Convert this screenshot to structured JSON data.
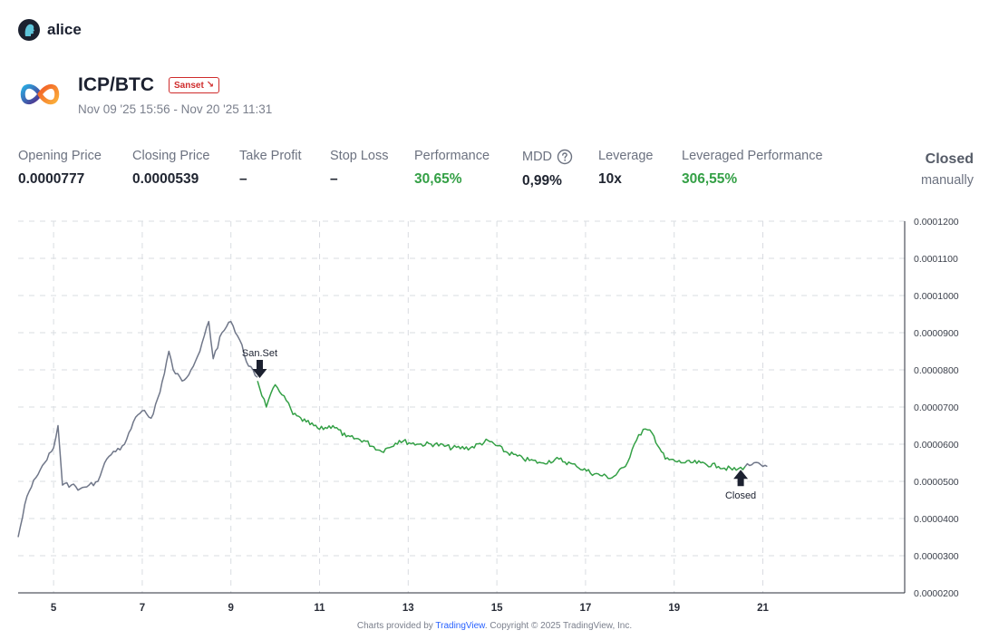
{
  "brand": {
    "name": "alice",
    "logo_icon": "alice-head-icon"
  },
  "pair": {
    "title": "ICP/BTC",
    "icon": "internet-computer-infinity-icon",
    "badge": {
      "label": "Sanset",
      "arrow": "↘",
      "color": "#cf2c2c"
    },
    "dates": "Nov 09 '25 15:56 - Nov 20 '25 11:31"
  },
  "stats": {
    "opening": {
      "label": "Opening Price",
      "value": "0.0000777"
    },
    "closing": {
      "label": "Closing Price",
      "value": "0.0000539"
    },
    "take_profit": {
      "label": "Take Profit",
      "value": "–"
    },
    "stop_loss": {
      "label": "Stop Loss",
      "value": "–"
    },
    "performance": {
      "label": "Performance",
      "value": "30,65%"
    },
    "mdd": {
      "label": "MDD",
      "value": "0,99%"
    },
    "leverage": {
      "label": "Leverage",
      "value": "10x"
    },
    "leveraged_performance": {
      "label": "Leveraged Performance",
      "value": "306,55%"
    }
  },
  "status": {
    "main": "Closed",
    "sub": "manually"
  },
  "colors": {
    "accent_green": "#34a046",
    "line_gray": "#707789",
    "line_green": "#34a046",
    "badge_red": "#cf2c2c"
  },
  "chart_data": {
    "type": "line",
    "x_tick_labels": [
      "5",
      "7",
      "9",
      "11",
      "13",
      "15",
      "17",
      "19",
      "21"
    ],
    "y_tick_labels": [
      "0.0001200",
      "0.0001100",
      "0.0001000",
      "0.0000900",
      "0.0000800",
      "0.0000700",
      "0.0000600",
      "0.0000500",
      "0.0000400",
      "0.0000300",
      "0.0000200"
    ],
    "xlim": [
      4.2,
      24.2
    ],
    "ylim": [
      2e-05,
      0.00012
    ],
    "grid": true,
    "series": [
      {
        "segment": "before_trade",
        "color": "#707789",
        "x": [
          4.2,
          4.4,
          4.6,
          4.8,
          5.0,
          5.1,
          5.2,
          5.4,
          5.6,
          5.8,
          6.0,
          6.2,
          6.4,
          6.6,
          6.8,
          7.0,
          7.2,
          7.4,
          7.6,
          7.7,
          7.9,
          8.1,
          8.3,
          8.5,
          8.6,
          8.8,
          9.0,
          9.2,
          9.4,
          9.6
        ],
        "y": [
          3.5e-05,
          4.6e-05,
          5.1e-05,
          5.5e-05,
          5.9e-05,
          6.5e-05,
          4.9e-05,
          4.9e-05,
          4.8e-05,
          4.9e-05,
          5e-05,
          5.6e-05,
          5.8e-05,
          6e-05,
          6.6e-05,
          6.9e-05,
          6.7e-05,
          7.4e-05,
          8.5e-05,
          8e-05,
          7.7e-05,
          8e-05,
          8.5e-05,
          9.3e-05,
          8.3e-05,
          9e-05,
          9.3e-05,
          8.8e-05,
          8.1e-05,
          7.8e-05
        ]
      },
      {
        "segment": "trade",
        "color": "#34a046",
        "x": [
          9.6,
          9.8,
          10.0,
          10.2,
          10.4,
          10.7,
          11.0,
          11.3,
          11.6,
          12.0,
          12.4,
          12.8,
          13.2,
          13.6,
          14.0,
          14.4,
          14.8,
          15.2,
          15.6,
          16.0,
          16.4,
          16.8,
          17.2,
          17.6,
          17.9,
          18.1,
          18.3,
          18.5,
          18.8,
          19.2,
          19.6,
          20.0,
          20.4,
          20.6
        ],
        "y": [
          7.7e-05,
          7e-05,
          7.6e-05,
          7.3e-05,
          6.8e-05,
          6.6e-05,
          6.4e-05,
          6.5e-05,
          6.2e-05,
          6.1e-05,
          5.8e-05,
          6.1e-05,
          6e-05,
          6e-05,
          5.9e-05,
          5.9e-05,
          6.1e-05,
          5.8e-05,
          5.6e-05,
          5.5e-05,
          5.6e-05,
          5.4e-05,
          5.2e-05,
          5.1e-05,
          5.4e-05,
          6e-05,
          6.4e-05,
          6.3e-05,
          5.6e-05,
          5.5e-05,
          5.5e-05,
          5.4e-05,
          5.3e-05,
          5.4e-05
        ]
      },
      {
        "segment": "after_trade",
        "color": "#707789",
        "x": [
          20.6,
          20.8,
          21.0,
          21.1
        ],
        "y": [
          5.4e-05,
          5.5e-05,
          5.4e-05,
          5.4e-05
        ]
      }
    ],
    "annotations": [
      {
        "label": "San.Set",
        "x": 9.65,
        "y": 7.78e-05,
        "direction": "down"
      },
      {
        "label": "Closed",
        "x": 20.5,
        "y": 5.36e-05,
        "direction": "up"
      }
    ]
  },
  "credit": {
    "prefix": "Charts provided by ",
    "link": "TradingView",
    "suffix": ". Copyright © 2025 TradingView, Inc."
  }
}
